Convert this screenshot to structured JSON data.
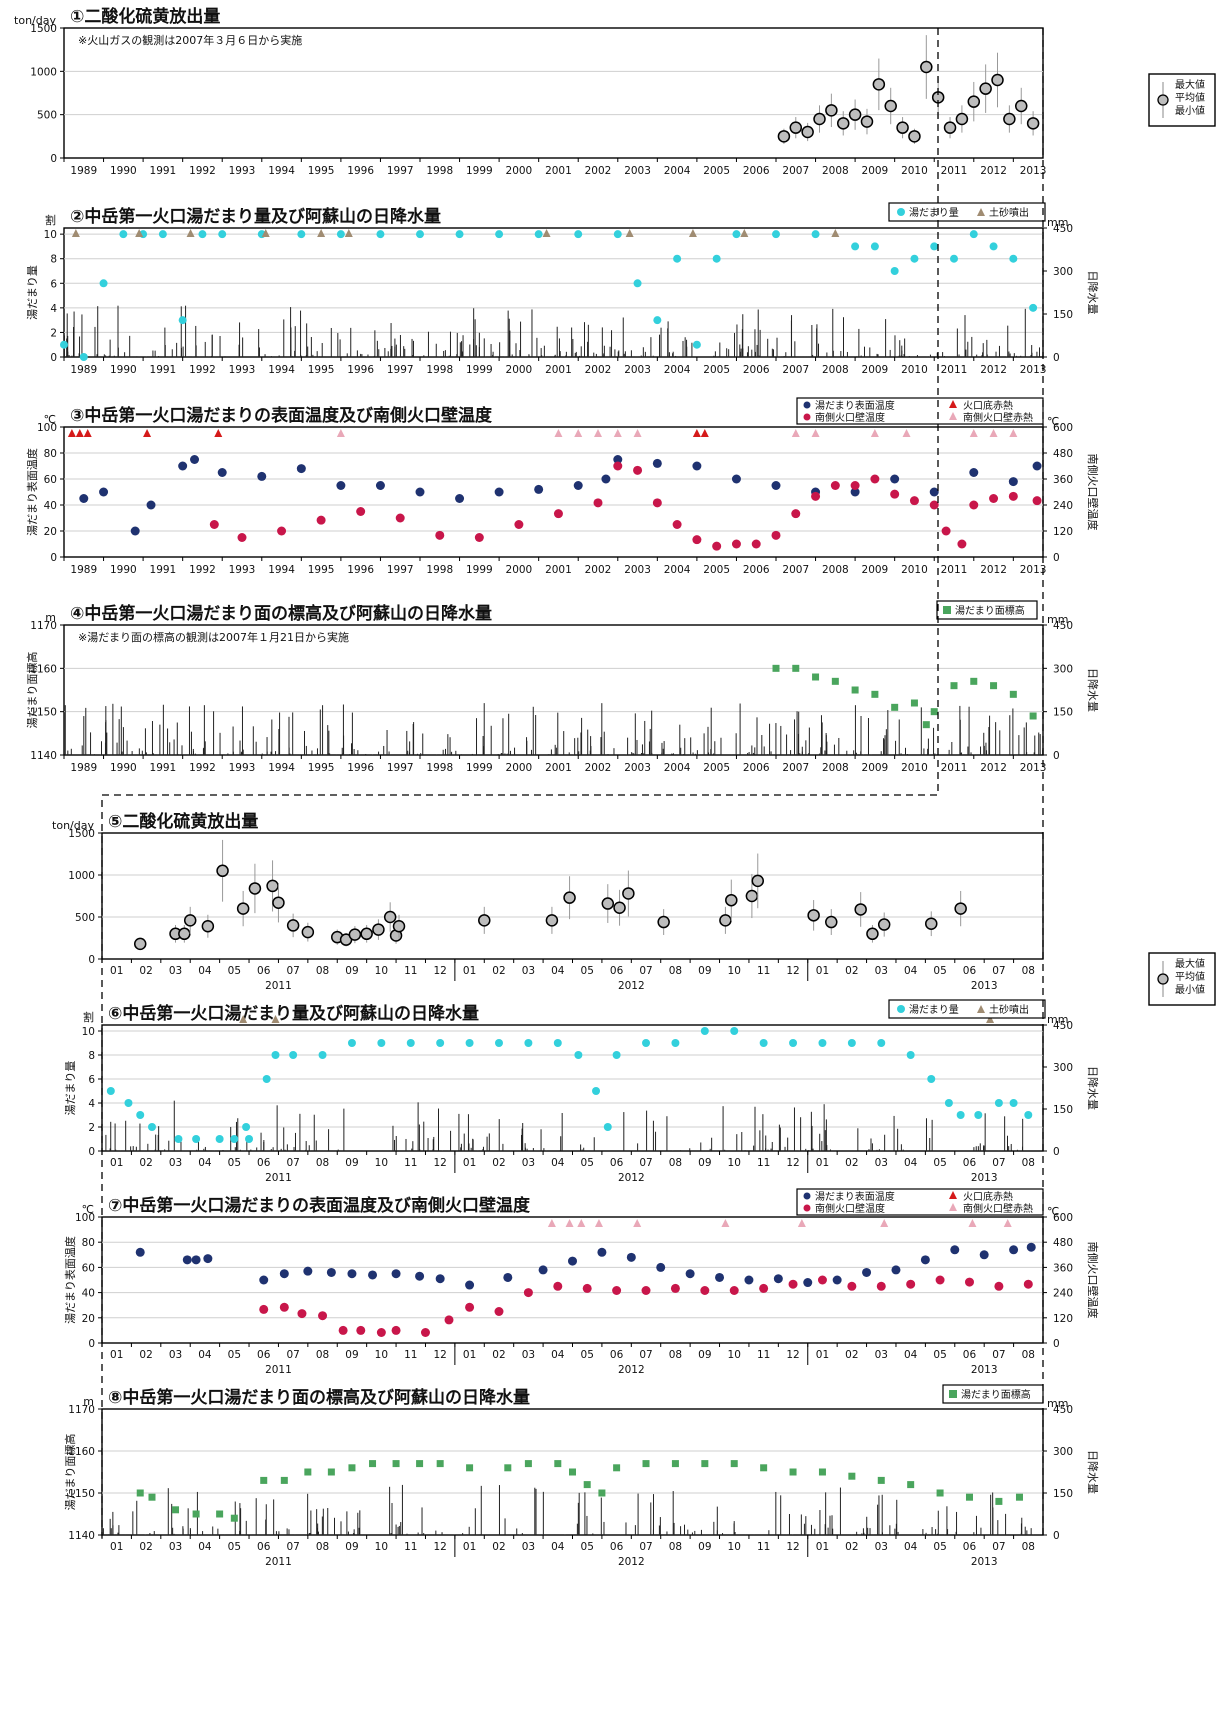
{
  "years": [
    "1989",
    "1990",
    "1991",
    "1992",
    "1993",
    "1994",
    "1995",
    "1996",
    "1997",
    "1998",
    "1999",
    "2000",
    "2001",
    "2002",
    "2003",
    "2004",
    "2005",
    "2006",
    "2007",
    "2008",
    "2009",
    "2010",
    "2011",
    "2012",
    "2013"
  ],
  "months": [
    "01",
    "02",
    "03",
    "04",
    "05",
    "06",
    "07",
    "08",
    "09",
    "10",
    "11",
    "12",
    "01",
    "02",
    "03",
    "04",
    "05",
    "06",
    "07",
    "08",
    "09",
    "10",
    "11",
    "12",
    "01",
    "02",
    "03",
    "04",
    "05",
    "06",
    "07",
    "08"
  ],
  "detail_years": [
    "2011",
    "2012",
    "2013"
  ],
  "legend": {
    "so2": [
      "最大値",
      "平均値",
      "最小値"
    ],
    "pool_amount": "湯だまり量",
    "sediment": "土砂噴出",
    "pool_temp": "湯だまり表面温度",
    "wall_temp": "南側火口壁温度",
    "floor_glow": "火口底赤熱",
    "wall_glow": "南側火口壁赤熱",
    "pool_level": "湯だまり面標高"
  },
  "chart_data": [
    {
      "id": 1,
      "type": "scatter",
      "title": "①二酸化硫黄放出量",
      "unit_left": "ton/day",
      "note": "※火山ガスの観測は2007年３月６日から実施",
      "x_range": [
        1989,
        2013.75
      ],
      "ylim": [
        0,
        1500
      ],
      "yticks": [
        0,
        500,
        1000,
        1500
      ],
      "series": [
        {
          "name": "平均値",
          "x": [
            2007.2,
            2007.5,
            2007.8,
            2008.1,
            2008.4,
            2008.7,
            2009.0,
            2009.3,
            2009.6,
            2009.9,
            2010.2,
            2010.5,
            2010.8,
            2011.1,
            2011.4,
            2011.7,
            2012.0,
            2012.3,
            2012.6,
            2012.9,
            2013.2,
            2013.5
          ],
          "y": [
            250,
            350,
            300,
            450,
            550,
            400,
            500,
            420,
            850,
            600,
            350,
            250,
            1050,
            700,
            350,
            450,
            650,
            800,
            900,
            450,
            600,
            400
          ]
        }
      ]
    },
    {
      "id": 2,
      "type": "scatter",
      "title": "②中岳第一火口湯だまり量及び阿蘇山の日降水量",
      "unit_left": "割",
      "unit_right": "mm",
      "ylabel_left": "湯だまり量",
      "ylabel_right": "日降水量",
      "x_range": [
        1989,
        2013.75
      ],
      "ylim": [
        0,
        10.5
      ],
      "yticks": [
        0,
        2,
        4,
        6,
        8,
        10
      ],
      "y2lim": [
        0,
        450
      ],
      "y2ticks": [
        0,
        150,
        300,
        450
      ],
      "series": [
        {
          "name": "湯だまり量",
          "x": [
            1989.0,
            1989.5,
            1990.0,
            1990.5,
            1991.0,
            1991.5,
            1992.0,
            1992.5,
            1993.0,
            1994.0,
            1995.0,
            1996.0,
            1997.0,
            1998.0,
            1999.0,
            2000.0,
            2001.0,
            2002.0,
            2003.0,
            2003.5,
            2004.0,
            2004.5,
            2005.0,
            2005.5,
            2006.0,
            2007.0,
            2008.0,
            2009.0,
            2009.5,
            2010.0,
            2010.5,
            2011.0,
            2011.5,
            2012.0,
            2012.5,
            2013.0,
            2013.5
          ],
          "y": [
            1,
            0,
            6,
            10,
            10,
            10,
            3,
            10,
            10,
            10,
            10,
            10,
            10,
            10,
            10,
            10,
            10,
            10,
            10,
            6,
            3,
            8,
            1,
            8,
            10,
            10,
            10,
            9,
            9,
            7,
            8,
            9,
            8,
            10,
            9,
            8,
            4
          ]
        }
      ]
    },
    {
      "id": 3,
      "type": "scatter",
      "title": "③中岳第一火口湯だまりの表面温度及び南側火口壁温度",
      "unit_left": "℃",
      "unit_right": "℃",
      "ylabel_left": "湯だまり表面温度",
      "ylabel_right": "南側火口壁温度",
      "x_range": [
        1989,
        2013.75
      ],
      "ylim": [
        0,
        100
      ],
      "yticks": [
        0,
        20,
        40,
        60,
        80,
        100
      ],
      "y2lim": [
        0,
        600
      ],
      "y2ticks": [
        0,
        120,
        240,
        360,
        480,
        600
      ],
      "series": [
        {
          "name": "湯だまり表面温度",
          "x": [
            1989.5,
            1990.0,
            1990.8,
            1991.2,
            1992.0,
            1992.3,
            1993.0,
            1994.0,
            1995.0,
            1996.0,
            1997.0,
            1998.0,
            1999.0,
            2000.0,
            2001.0,
            2002.0,
            2002.7,
            2003.0,
            2004.0,
            2005.0,
            2006.0,
            2007.0,
            2008.0,
            2009.0,
            2010.0,
            2011.0,
            2012.0,
            2013.0,
            2013.6
          ],
          "y": [
            45,
            50,
            20,
            40,
            70,
            75,
            65,
            62,
            68,
            55,
            55,
            50,
            45,
            50,
            52,
            55,
            60,
            75,
            72,
            70,
            60,
            55,
            50,
            50,
            60,
            50,
            65,
            58,
            70
          ]
        },
        {
          "name": "南側火口壁温度",
          "x": [
            1992.8,
            1993.5,
            1994.5,
            1995.5,
            1996.5,
            1997.5,
            1998.5,
            1999.5,
            2000.5,
            2001.5,
            2002.5,
            2003.0,
            2003.5,
            2004.0,
            2004.5,
            2005.0,
            2005.5,
            2006.0,
            2006.5,
            2007.0,
            2007.5,
            2008.0,
            2008.5,
            2009.0,
            2009.5,
            2010.0,
            2010.5,
            2011.0,
            2011.3,
            2011.7,
            2012.0,
            2012.5,
            2013.0,
            2013.6
          ],
          "y": [
            150,
            90,
            120,
            170,
            210,
            180,
            100,
            90,
            150,
            200,
            250,
            420,
            400,
            250,
            150,
            80,
            50,
            60,
            60,
            100,
            200,
            280,
            330,
            330,
            360,
            290,
            260,
            240,
            120,
            60,
            240,
            270,
            280,
            260
          ]
        }
      ]
    },
    {
      "id": 4,
      "type": "scatter",
      "title": "④中岳第一火口湯だまり面の標高及び阿蘇山の日降水量",
      "unit_left": "m",
      "unit_right": "mm",
      "ylabel_left": "湯だまり面標高",
      "ylabel_right": "日降水量",
      "note": "※湯だまり面の標高の観測は2007年１月21日から実施",
      "x_range": [
        1989,
        2013.75
      ],
      "ylim": [
        1140,
        1170
      ],
      "yticks": [
        1140,
        1150,
        1160,
        1170
      ],
      "y2lim": [
        0,
        450
      ],
      "y2ticks": [
        0,
        150,
        300,
        450
      ],
      "series": [
        {
          "name": "湯だまり面標高",
          "x": [
            2007.0,
            2007.5,
            2008.0,
            2008.5,
            2009.0,
            2009.5,
            2010.0,
            2010.5,
            2010.8,
            2011.0,
            2011.5,
            2012.0,
            2012.5,
            2013.0,
            2013.5
          ],
          "y": [
            1160,
            1160,
            1158,
            1157,
            1155,
            1154,
            1151,
            1152,
            1147,
            1150,
            1156,
            1157,
            1156,
            1154,
            1149
          ]
        }
      ]
    },
    {
      "id": 5,
      "type": "scatter",
      "title": "⑤二酸化硫黄放出量",
      "unit_left": "ton/day",
      "x_range": [
        0,
        32
      ],
      "ylim": [
        0,
        1500
      ],
      "yticks": [
        0,
        500,
        1000,
        1500
      ],
      "series": [
        {
          "name": "平均値",
          "x": [
            1.3,
            2.5,
            2.8,
            3.0,
            3.6,
            4.1,
            4.8,
            5.2,
            5.8,
            6.0,
            6.5,
            7.0,
            8.0,
            8.3,
            8.6,
            9.0,
            9.4,
            9.8,
            10.0,
            10.1,
            13.0,
            15.3,
            15.9,
            17.2,
            17.6,
            17.9,
            19.1,
            21.2,
            21.4,
            22.1,
            22.3,
            24.2,
            24.8,
            25.8,
            26.2,
            26.6,
            28.2,
            29.2
          ],
          "y": [
            180,
            300,
            300,
            460,
            390,
            1050,
            600,
            840,
            870,
            670,
            400,
            320,
            260,
            230,
            290,
            300,
            350,
            500,
            280,
            390,
            460,
            460,
            730,
            660,
            610,
            780,
            440,
            460,
            700,
            750,
            930,
            520,
            440,
            590,
            300,
            410,
            420,
            600
          ]
        }
      ]
    },
    {
      "id": 6,
      "type": "scatter",
      "title": "⑥中岳第一火口湯だまり量及び阿蘇山の日降水量",
      "unit_left": "割",
      "unit_right": "mm",
      "ylabel_left": "湯だまり量",
      "ylabel_right": "日降水量",
      "x_range": [
        0,
        32
      ],
      "ylim": [
        0,
        10.5
      ],
      "yticks": [
        0,
        2,
        4,
        6,
        8,
        10
      ],
      "y2lim": [
        0,
        450
      ],
      "y2ticks": [
        0,
        150,
        300,
        450
      ],
      "series": [
        {
          "name": "湯だまり量",
          "x": [
            0.3,
            0.9,
            1.3,
            1.7,
            2.6,
            3.2,
            4.0,
            4.5,
            4.9,
            5.0,
            5.6,
            5.9,
            6.5,
            7.5,
            8.5,
            9.5,
            10.5,
            11.5,
            12.5,
            13.5,
            14.5,
            15.5,
            16.2,
            16.8,
            17.2,
            17.5,
            18.5,
            19.5,
            20.5,
            21.5,
            22.5,
            23.5,
            24.5,
            25.5,
            26.5,
            27.5,
            28.2,
            28.8,
            29.2,
            29.8,
            30.5,
            31.0,
            31.5
          ],
          "y": [
            5,
            4,
            3,
            2,
            1,
            1,
            1,
            1,
            2,
            1,
            6,
            8,
            8,
            8,
            9,
            9,
            9,
            9,
            9,
            9,
            9,
            9,
            8,
            5,
            2,
            8,
            9,
            9,
            10,
            10,
            9,
            9,
            9,
            9,
            9,
            8,
            6,
            4,
            3,
            3,
            4,
            4,
            3
          ]
        }
      ]
    },
    {
      "id": 7,
      "type": "scatter",
      "title": "⑦中岳第一火口湯だまりの表面温度及び南側火口壁温度",
      "unit_left": "℃",
      "unit_right": "℃",
      "ylabel_left": "湯だまり表面温度",
      "ylabel_right": "南側火口壁温度",
      "x_range": [
        0,
        32
      ],
      "ylim": [
        0,
        100
      ],
      "yticks": [
        0,
        20,
        40,
        60,
        80,
        100
      ],
      "y2lim": [
        0,
        600
      ],
      "y2ticks": [
        0,
        120,
        240,
        360,
        480,
        600
      ],
      "series": [
        {
          "name": "湯だまり表面温度",
          "x": [
            1.3,
            2.9,
            3.2,
            3.6,
            5.5,
            6.2,
            7.0,
            7.8,
            8.5,
            9.2,
            10.0,
            10.8,
            11.5,
            12.5,
            13.8,
            15.0,
            16.0,
            17.0,
            18.0,
            19.0,
            20.0,
            21.0,
            22.0,
            23.0,
            24.0,
            25.0,
            26.0,
            27.0,
            28.0,
            29.0,
            30.0,
            31.0,
            31.6
          ],
          "y": [
            72,
            66,
            66,
            67,
            50,
            55,
            57,
            56,
            55,
            54,
            55,
            53,
            51,
            46,
            52,
            58,
            65,
            72,
            68,
            60,
            55,
            52,
            50,
            51,
            48,
            50,
            56,
            58,
            66,
            74,
            70,
            74,
            76
          ]
        },
        {
          "name": "南側火口壁温度",
          "x": [
            5.5,
            6.2,
            6.8,
            7.5,
            8.2,
            8.8,
            9.5,
            10.0,
            11.0,
            11.8,
            12.5,
            13.5,
            14.5,
            15.5,
            16.5,
            17.5,
            18.5,
            19.5,
            20.5,
            21.5,
            22.5,
            23.5,
            24.5,
            25.5,
            26.5,
            27.5,
            28.5,
            29.5,
            30.5,
            31.5
          ],
          "y": [
            160,
            170,
            140,
            130,
            60,
            60,
            50,
            60,
            50,
            110,
            170,
            150,
            240,
            270,
            260,
            250,
            250,
            260,
            250,
            250,
            260,
            280,
            300,
            270,
            270,
            280,
            300,
            290,
            270,
            280
          ]
        }
      ]
    },
    {
      "id": 8,
      "type": "scatter",
      "title": "⑧中岳第一火口湯だまり面の標高及び阿蘇山の日降水量",
      "unit_left": "m",
      "unit_right": "mm",
      "ylabel_left": "湯だまり面標高",
      "ylabel_right": "日降水量",
      "x_range": [
        0,
        32
      ],
      "ylim": [
        1140,
        1170
      ],
      "yticks": [
        1140,
        1150,
        1160,
        1170
      ],
      "y2lim": [
        0,
        450
      ],
      "y2ticks": [
        0,
        150,
        300,
        450
      ],
      "series": [
        {
          "name": "湯だまり面標高",
          "x": [
            1.3,
            1.7,
            2.5,
            3.2,
            4.0,
            4.5,
            5.5,
            6.2,
            7.0,
            7.8,
            8.5,
            9.2,
            10.0,
            10.8,
            11.5,
            12.5,
            13.8,
            14.5,
            15.5,
            16.0,
            16.5,
            17.0,
            17.5,
            18.5,
            19.5,
            20.5,
            21.5,
            22.5,
            23.5,
            24.5,
            25.5,
            26.5,
            27.5,
            28.5,
            29.5,
            30.5,
            31.2
          ],
          "y": [
            1150,
            1149,
            1146,
            1145,
            1145,
            1144,
            1153,
            1153,
            1155,
            1155,
            1156,
            1157,
            1157,
            1157,
            1157,
            1156,
            1156,
            1157,
            1157,
            1155,
            1152,
            1150,
            1156,
            1157,
            1157,
            1157,
            1157,
            1156,
            1155,
            1155,
            1154,
            1153,
            1152,
            1150,
            1149,
            1148,
            1149
          ]
        }
      ]
    }
  ]
}
